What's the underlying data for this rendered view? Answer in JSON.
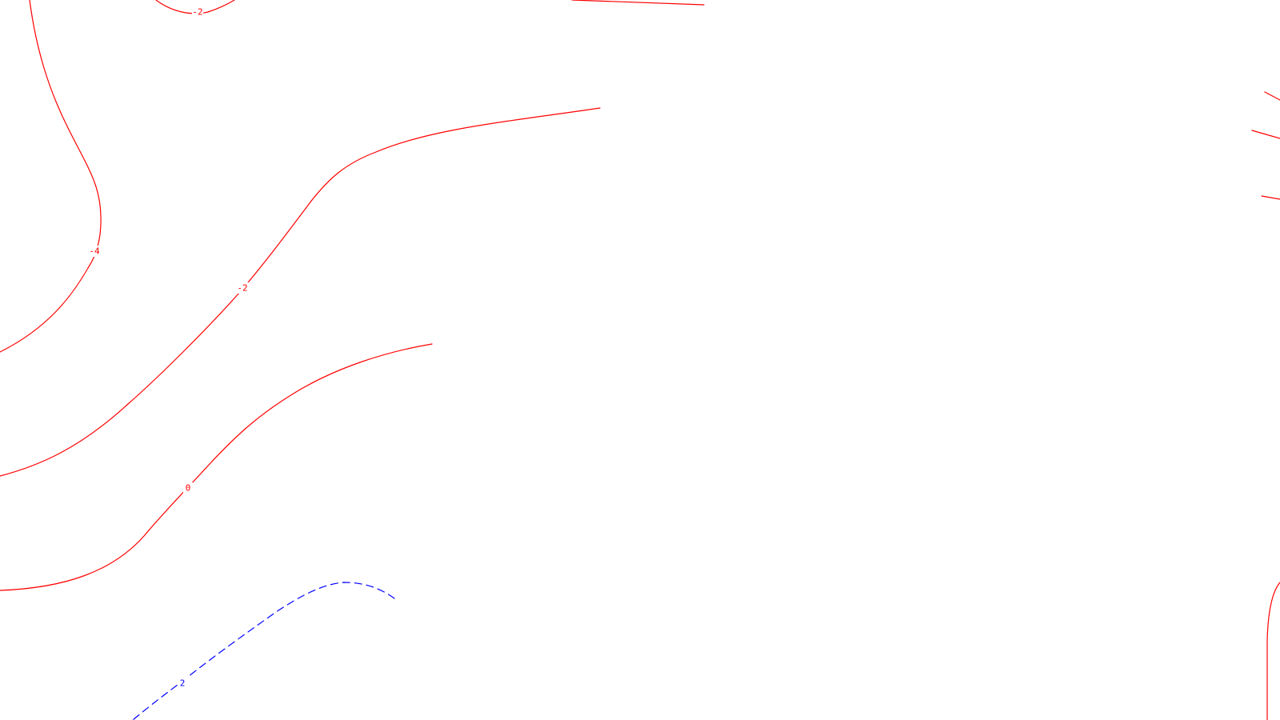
{
  "map": {
    "background": "#ffffff",
    "positive_color": "#ff0000",
    "negative_color": "#0000ff",
    "contour_levels": [
      {
        "id": "neg4",
        "value": -4,
        "label": "-4",
        "style": "solid"
      },
      {
        "id": "neg2",
        "value": -2,
        "label": "-2",
        "style": "solid"
      },
      {
        "id": "zero",
        "value": 0,
        "label": "0",
        "style": "solid"
      },
      {
        "id": "pos2",
        "value": 2,
        "label": "2",
        "style": "dashed"
      }
    ]
  }
}
